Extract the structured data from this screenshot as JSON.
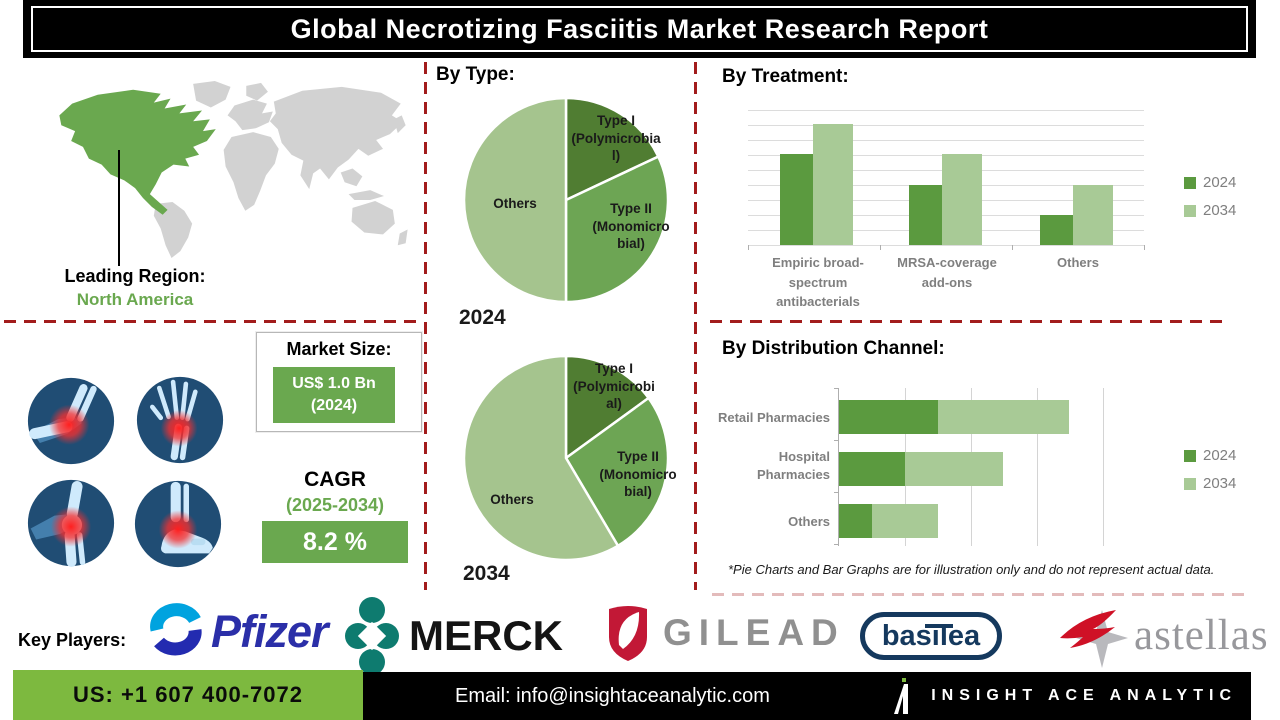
{
  "title": "Global Necrotizing Fasciitis Market Research Report",
  "map": {
    "leading_region_label": "Leading Region:",
    "leading_region_value": "North America",
    "highlight_color": "#6aa84f"
  },
  "market_size": {
    "label": "Market Size:",
    "value": "US$ 1.0 Bn\n(2024)"
  },
  "cagr": {
    "label": "CAGR",
    "period": "(2025-2034)",
    "value": "8.2 %"
  },
  "sections": {
    "by_type": {
      "heading": "By Type:",
      "pies": [
        {
          "year": "2024",
          "slice_labels": [
            "Type I\n(Polymicrobia\nl)",
            "Type II\n(Monomicro\nbial)",
            "Others"
          ]
        },
        {
          "year": "2034",
          "slice_labels": [
            "Type I\n(Polymicrobi\nal)",
            "Type II\n(Monomicro\nbial)",
            "Others"
          ]
        }
      ]
    },
    "by_treatment": {
      "heading": "By Treatment:",
      "legend": [
        "2024",
        "2034"
      ]
    },
    "by_distribution": {
      "heading": "By Distribution Channel:",
      "legend": [
        "2024",
        "2034"
      ]
    },
    "disclaimer": "*Pie Charts and Bar Graphs are for illustration only and do not represent actual data."
  },
  "key_players": {
    "label": "Key Players:",
    "companies": [
      {
        "name": "Pfizer"
      },
      {
        "name": "MERCK"
      },
      {
        "name": "GILEAD"
      },
      {
        "name": "basilea"
      },
      {
        "name": "astellas"
      }
    ]
  },
  "footer": {
    "phone": "US: +1 607 400-7072",
    "email": "Email: info@insightaceanalytic.com",
    "brand": "INSIGHT ACE ANALYTIC"
  },
  "colors": {
    "accent_green": "#6aa84f",
    "footer_green": "#7db93f",
    "dash_red": "#a21c1c",
    "pie_dark": "#507d32",
    "pie_medium": "#6da554",
    "pie_light": "#a5c48e",
    "bar_2024": "#5b9a3f",
    "bar_2034": "#a8ca96"
  },
  "chart_data": [
    {
      "id": "pie-2024",
      "type": "pie",
      "title": "By Type: 2024",
      "labels": [
        "Type I (Polymicrobial)",
        "Type II (Monomicrobial)",
        "Others"
      ],
      "values": [
        18,
        32,
        50
      ],
      "unit": "% (illustrative)",
      "colors": [
        "#507d32",
        "#6da554",
        "#a5c48e"
      ],
      "note": "Illustration only, does not represent actual data"
    },
    {
      "id": "pie-2034",
      "type": "pie",
      "title": "By Type: 2034",
      "labels": [
        "Type I (Polymicrobial)",
        "Type II (Monomicrobial)",
        "Others"
      ],
      "values": [
        15,
        26.5,
        58.5
      ],
      "unit": "% (illustrative)",
      "colors": [
        "#507d32",
        "#6da554",
        "#a5c48e"
      ],
      "note": "Illustration only, does not represent actual data"
    },
    {
      "id": "treatment",
      "type": "bar",
      "title": "By Treatment:",
      "categories": [
        "Empiric broad-\nspectrum\nantibacterials",
        "MRSA-coverage\nadd-ons",
        "Others"
      ],
      "series": [
        {
          "name": "2024",
          "values": [
            30,
            20,
            10
          ],
          "color": "#5b9a3f"
        },
        {
          "name": "2034",
          "values": [
            40,
            30,
            20
          ],
          "color": "#a8ca96"
        }
      ],
      "ylim": [
        0,
        45
      ],
      "grid": true,
      "legend_position": "right",
      "note": "Illustration only, axis unlabeled"
    },
    {
      "id": "distribution",
      "type": "stacked-bar-horizontal",
      "title": "By Distribution Channel:",
      "categories": [
        "Retail Pharmacies",
        "Hospital\nPharmacies",
        "Others"
      ],
      "series": [
        {
          "name": "2024",
          "values": [
            30,
            20,
            10
          ],
          "color": "#5b9a3f"
        },
        {
          "name": "2034",
          "values": [
            40,
            30,
            20
          ],
          "color": "#a8ca96"
        }
      ],
      "xlim": [
        0,
        95
      ],
      "grid": true,
      "legend_position": "right",
      "note": "Illustration only, axis unlabeled"
    }
  ]
}
